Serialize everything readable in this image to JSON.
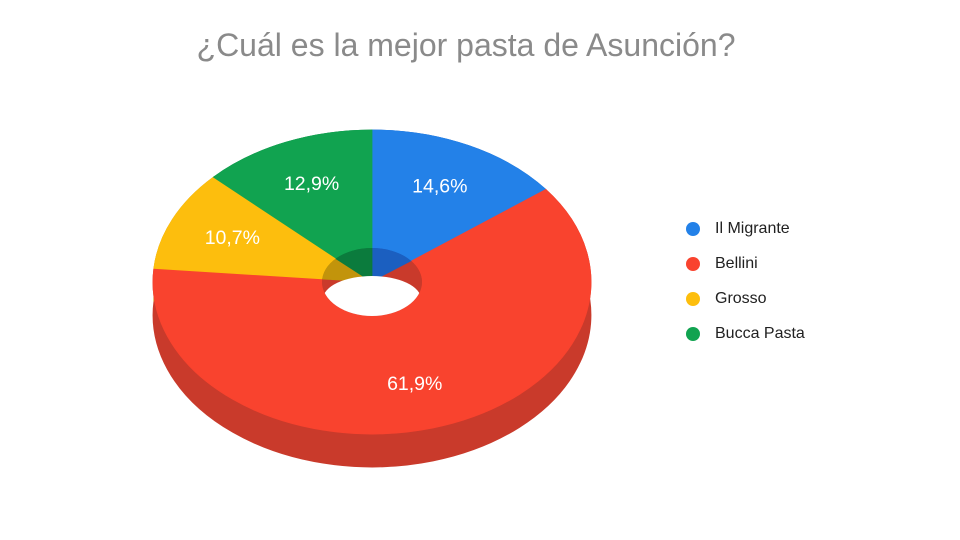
{
  "slide": {
    "background": "#FFFFFF"
  },
  "chart_data": {
    "type": "pie",
    "style": "3d-donut",
    "title": "¿Cuál es la mejor pasta de Asunción?",
    "title_color": "#8A8A8A",
    "categories": [
      "Il Migrante",
      "Bellini",
      "Grosso",
      "Bucca Pasta"
    ],
    "values": [
      14.6,
      61.9,
      10.7,
      12.9
    ],
    "value_labels": [
      "14,6%",
      "61,9%",
      "10,7%",
      "12,9%"
    ],
    "units": "percent",
    "colors": [
      "#2381E8",
      "#F9432E",
      "#FDBE0D",
      "#11A350"
    ],
    "side_colors": [
      "#1B5FC0",
      "#C93A2B",
      "#C2940B",
      "#0B7B3D"
    ],
    "label_color": "#FFFFFF",
    "start_angle_deg": 0,
    "direction": "clockwise",
    "donut_hole": true,
    "legend_position": "right"
  },
  "legend": {
    "items": [
      {
        "label": "Il Migrante",
        "color": "#2381E8"
      },
      {
        "label": "Bellini",
        "color": "#F9432E"
      },
      {
        "label": "Grosso",
        "color": "#FDBE0D"
      },
      {
        "label": "Bucca Pasta",
        "color": "#11A350"
      }
    ]
  }
}
